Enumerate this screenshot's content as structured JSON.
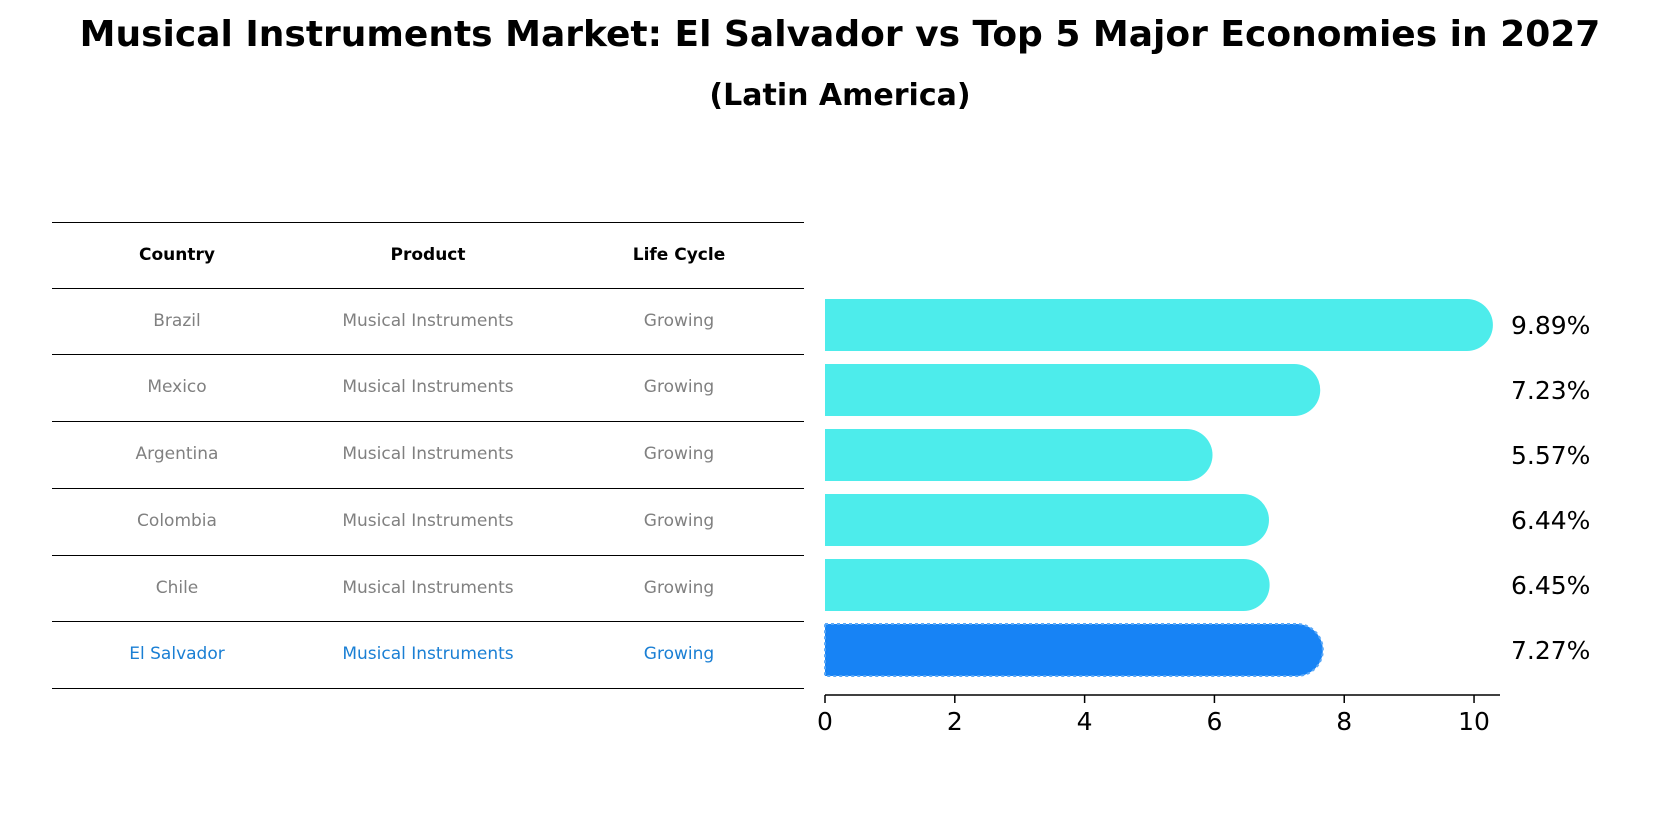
{
  "header": {
    "title": "Musical Instruments Market: El Salvador vs Top 5 Major Economies in 2027",
    "subtitle": "(Latin America)"
  },
  "table": {
    "columns": [
      "Country",
      "Product",
      "Life Cycle"
    ],
    "rows": [
      [
        "Brazil",
        "Musical Instruments",
        "Growing"
      ],
      [
        "Mexico",
        "Musical Instruments",
        "Growing"
      ],
      [
        "Argentina",
        "Musical Instruments",
        "Growing"
      ],
      [
        "Colombia",
        "Musical Instruments",
        "Growing"
      ],
      [
        "Chile",
        "Musical Instruments",
        "Growing"
      ],
      [
        "El Salvador",
        "Musical Instruments",
        "Growing"
      ]
    ],
    "highlight_row": 5
  },
  "colors": {
    "bar": "#4deceb",
    "highlight_bar": "#1783f5",
    "highlight_text": "#1a7fd4",
    "muted_text": "#808080"
  },
  "chart_data": {
    "type": "bar",
    "orientation": "horizontal",
    "categories": [
      "Brazil",
      "Mexico",
      "Argentina",
      "Colombia",
      "Chile",
      "El Salvador"
    ],
    "values": [
      9.89,
      7.23,
      5.57,
      6.44,
      6.45,
      7.27
    ],
    "value_labels": [
      "9.89%",
      "7.23%",
      "5.57%",
      "6.44%",
      "6.45%",
      "7.27%"
    ],
    "highlight_index": 5,
    "xlim": [
      0,
      10.4
    ],
    "xticks": [
      0,
      2,
      4,
      6,
      8,
      10
    ],
    "xtick_labels": [
      "0",
      "2",
      "4",
      "6",
      "8",
      "10"
    ],
    "xlabel": "",
    "ylabel": ""
  }
}
